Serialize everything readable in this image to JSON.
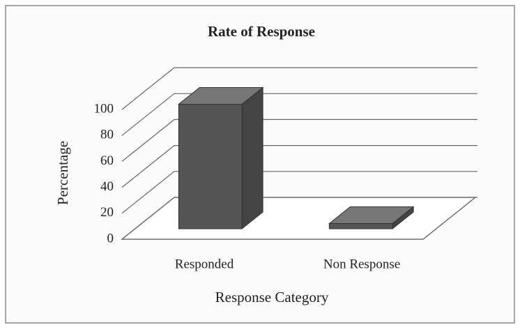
{
  "chart_data": {
    "type": "bar3d",
    "title": "Rate of Response",
    "x_label": "Response Category",
    "y_label": "Percentage",
    "categories": [
      "Responded",
      "Non Response"
    ],
    "values": [
      96,
      4
    ],
    "color": "#555555",
    "ylim": [
      0,
      100
    ],
    "yticks": [
      0,
      20,
      40,
      60,
      80,
      100
    ],
    "grid": true
  }
}
